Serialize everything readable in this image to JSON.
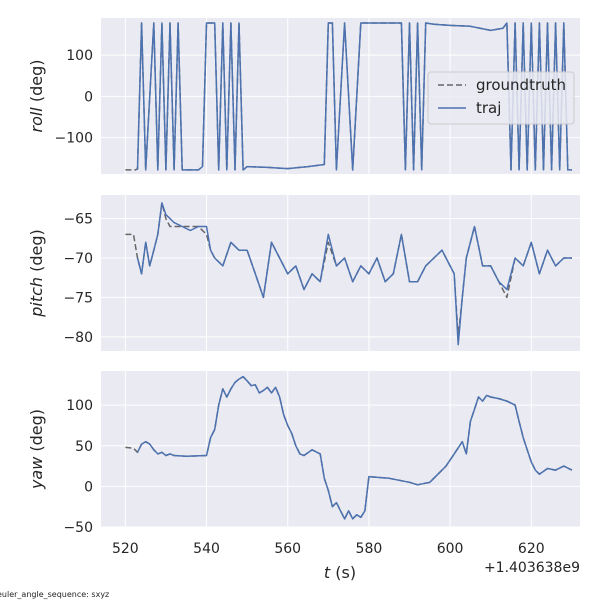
{
  "figure": {
    "x_offset_label": "+1.403638e9",
    "xlabel_var": "t",
    "xlabel_unit": " (s)",
    "footnote": "euler_angle_sequence: sxyz",
    "colors": {
      "background": "#eaeaf2",
      "grid": "#ffffff",
      "groundtruth": "#666666",
      "traj": "#4c72b0",
      "text": "#262626"
    }
  },
  "legend": {
    "items": [
      {
        "label": "groundtruth",
        "style": "dashed"
      },
      {
        "label": "traj",
        "style": "solid"
      }
    ]
  },
  "chart_data": [
    {
      "type": "line",
      "ylabel_var": "roll",
      "ylabel_unit": " (deg)",
      "xlim": [
        514,
        632
      ],
      "ylim": [
        -188,
        190
      ],
      "xticks": [
        520,
        540,
        560,
        580,
        600,
        620
      ],
      "yticks": [
        100,
        0,
        -100
      ],
      "ytick_labels": [
        "100",
        "0",
        "−100"
      ],
      "show_xticklabels": false,
      "series": [
        {
          "name": "groundtruth",
          "style": "dashed",
          "x": [
            520,
            522.5,
            523,
            524,
            525,
            527,
            528,
            529,
            530,
            531,
            532,
            533,
            534,
            535,
            538,
            539,
            540,
            541,
            542,
            543,
            544,
            545,
            546,
            547,
            548,
            549,
            550,
            555,
            560,
            565,
            569,
            570,
            571,
            572,
            574,
            576,
            578,
            580,
            585,
            588,
            589,
            590,
            591,
            592,
            593,
            594,
            596,
            600,
            605,
            610,
            613,
            614,
            615,
            616,
            617,
            618,
            619,
            620,
            621,
            622,
            623,
            624,
            625,
            626,
            627,
            628,
            629,
            630
          ],
          "y": [
            -178,
            -178,
            -175,
            178,
            -178,
            178,
            -178,
            178,
            -178,
            178,
            -178,
            178,
            -178,
            -178,
            -178,
            -170,
            178,
            178,
            178,
            -178,
            178,
            -178,
            178,
            -178,
            178,
            -178,
            -170,
            -172,
            -175,
            -170,
            -165,
            178,
            178,
            -178,
            178,
            -178,
            178,
            178,
            178,
            178,
            -178,
            178,
            -178,
            178,
            -178,
            178,
            175,
            172,
            170,
            160,
            165,
            178,
            -178,
            178,
            -178,
            178,
            -178,
            178,
            -178,
            178,
            -178,
            178,
            -178,
            178,
            -178,
            178,
            -178,
            -178
          ]
        },
        {
          "name": "traj",
          "style": "solid",
          "x": [
            523,
            524,
            525,
            527,
            528,
            529,
            530,
            531,
            532,
            533,
            534,
            535,
            538,
            539,
            540,
            541,
            542,
            543,
            544,
            545,
            546,
            547,
            548,
            549,
            550,
            555,
            560,
            565,
            569,
            570,
            571,
            572,
            574,
            576,
            578,
            580,
            585,
            588,
            589,
            590,
            591,
            592,
            593,
            594,
            596,
            600,
            605,
            610,
            613,
            614,
            615,
            616,
            617,
            618,
            619,
            620,
            621,
            622,
            623,
            624,
            625,
            626,
            627,
            628,
            629,
            630
          ],
          "y": [
            -178,
            178,
            -178,
            178,
            -178,
            178,
            -178,
            178,
            -178,
            178,
            -178,
            -178,
            -178,
            -170,
            178,
            178,
            178,
            -178,
            178,
            -178,
            178,
            -178,
            178,
            -178,
            -170,
            -172,
            -175,
            -170,
            -165,
            178,
            178,
            -178,
            178,
            -178,
            178,
            178,
            178,
            178,
            -178,
            178,
            -178,
            178,
            -178,
            178,
            175,
            172,
            170,
            160,
            165,
            178,
            -178,
            178,
            -178,
            178,
            -178,
            178,
            -178,
            178,
            -178,
            178,
            -178,
            178,
            -178,
            178,
            -178,
            -178
          ]
        }
      ]
    },
    {
      "type": "line",
      "ylabel_var": "pitch",
      "ylabel_unit": " (deg)",
      "xlim": [
        514,
        632
      ],
      "ylim": [
        -81.8,
        -62
      ],
      "xticks": [
        520,
        540,
        560,
        580,
        600,
        620
      ],
      "yticks": [
        -65,
        -70,
        -75,
        -80
      ],
      "ytick_labels": [
        "−65",
        "−70",
        "−75",
        "−80"
      ],
      "show_xticklabels": false,
      "series": [
        {
          "name": "groundtruth",
          "style": "dashed",
          "x": [
            520,
            522,
            523,
            524,
            525,
            526,
            527,
            528,
            529,
            530,
            531,
            532,
            534,
            536,
            538,
            540,
            541,
            542,
            544,
            546,
            548,
            550,
            552,
            554,
            556,
            558,
            560,
            562,
            564,
            566,
            568,
            570,
            572,
            574,
            576,
            578,
            580,
            582,
            584,
            586,
            588,
            590,
            592,
            594,
            596,
            598,
            600,
            601,
            602,
            603,
            604,
            606,
            608,
            610,
            612,
            614,
            616,
            618,
            620,
            622,
            624,
            626,
            628,
            630
          ],
          "y": [
            -67,
            -67,
            -70,
            -72,
            -68,
            -71,
            -69,
            -67,
            -63,
            -65,
            -66,
            -66,
            -66,
            -66,
            -66,
            -67,
            -69,
            -70,
            -71,
            -68,
            -69,
            -69,
            -72,
            -75,
            -68,
            -70,
            -72,
            -71,
            -74,
            -72,
            -73,
            -68,
            -71,
            -70,
            -73,
            -71,
            -72,
            -70,
            -73,
            -72,
            -67,
            -73,
            -73,
            -71,
            -70,
            -69,
            -71,
            -72,
            -80,
            -75,
            -70,
            -66,
            -71,
            -71,
            -73,
            -75,
            -70,
            -71,
            -68,
            -72,
            -69,
            -71,
            -70,
            -70
          ]
        },
        {
          "name": "traj",
          "style": "solid",
          "x": [
            523,
            524,
            525,
            526,
            527,
            528,
            529,
            530,
            531,
            532,
            534,
            536,
            538,
            540,
            541,
            542,
            544,
            546,
            548,
            550,
            552,
            554,
            556,
            558,
            560,
            562,
            564,
            566,
            568,
            570,
            572,
            574,
            576,
            578,
            580,
            582,
            584,
            586,
            588,
            590,
            592,
            594,
            596,
            598,
            600,
            601,
            602,
            603,
            604,
            606,
            608,
            610,
            612,
            614,
            616,
            618,
            620,
            622,
            624,
            626,
            628,
            630
          ],
          "y": [
            -70,
            -72,
            -68,
            -71,
            -69,
            -67,
            -63,
            -64.5,
            -65,
            -65.5,
            -66,
            -66.5,
            -66,
            -66,
            -69,
            -70,
            -71,
            -68,
            -69,
            -69,
            -72,
            -75,
            -68,
            -70,
            -72,
            -71,
            -74,
            -72,
            -73,
            -67,
            -71,
            -70,
            -73,
            -71,
            -72,
            -70,
            -73,
            -72,
            -67,
            -73,
            -73,
            -71,
            -70,
            -69,
            -71,
            -72,
            -81,
            -75,
            -70,
            -66,
            -71,
            -71,
            -73,
            -74,
            -70,
            -71,
            -68,
            -72,
            -69,
            -71,
            -70,
            -70
          ]
        }
      ]
    },
    {
      "type": "line",
      "ylabel_var": "yaw",
      "ylabel_unit": " (deg)",
      "xlim": [
        514,
        632
      ],
      "ylim": [
        -50,
        142
      ],
      "xticks": [
        520,
        540,
        560,
        580,
        600,
        620
      ],
      "xtick_labels": [
        "520",
        "540",
        "560",
        "580",
        "600",
        "620"
      ],
      "yticks": [
        100,
        50,
        0,
        -50
      ],
      "ytick_labels": [
        "100",
        "50",
        "0",
        "−50"
      ],
      "show_xticklabels": true,
      "series": [
        {
          "name": "groundtruth",
          "style": "dashed",
          "x": [
            520,
            522,
            523,
            524,
            525,
            526,
            527,
            528,
            529,
            530,
            531,
            532,
            535,
            540,
            541,
            542,
            543,
            544,
            545,
            546,
            547,
            548,
            549,
            550,
            551,
            552,
            553,
            554,
            555,
            556,
            557,
            558,
            559,
            560,
            561,
            562,
            563,
            564,
            566,
            568,
            569,
            570,
            571,
            572,
            573,
            574,
            575,
            576,
            577,
            578,
            579,
            580,
            585,
            590,
            592,
            595,
            597,
            599,
            601,
            603,
            604,
            605,
            606,
            607,
            608,
            609,
            610,
            612,
            614,
            616,
            617,
            618,
            619,
            620,
            621,
            622,
            624,
            626,
            628,
            630
          ],
          "y": [
            48,
            47,
            42,
            52,
            55,
            52,
            45,
            40,
            42,
            38,
            40,
            38,
            37,
            38,
            60,
            70,
            100,
            120,
            110,
            120,
            128,
            132,
            135,
            130,
            124,
            125,
            115,
            118,
            122,
            115,
            122,
            110,
            88,
            75,
            65,
            50,
            40,
            38,
            45,
            40,
            10,
            -5,
            -25,
            -20,
            -30,
            -40,
            -30,
            -40,
            -35,
            -38,
            -30,
            12,
            10,
            5,
            2,
            5,
            15,
            25,
            40,
            55,
            40,
            80,
            95,
            110,
            105,
            112,
            110,
            108,
            105,
            100,
            80,
            60,
            45,
            30,
            20,
            15,
            22,
            20,
            25,
            20
          ]
        },
        {
          "name": "traj",
          "style": "solid",
          "x": [
            523,
            524,
            525,
            526,
            527,
            528,
            529,
            530,
            531,
            532,
            535,
            540,
            541,
            542,
            543,
            544,
            545,
            546,
            547,
            548,
            549,
            550,
            551,
            552,
            553,
            554,
            555,
            556,
            557,
            558,
            559,
            560,
            561,
            562,
            563,
            564,
            566,
            568,
            569,
            570,
            571,
            572,
            573,
            574,
            575,
            576,
            577,
            578,
            579,
            580,
            585,
            590,
            592,
            595,
            597,
            599,
            601,
            603,
            604,
            605,
            606,
            607,
            608,
            609,
            610,
            612,
            614,
            616,
            617,
            618,
            619,
            620,
            621,
            622,
            624,
            626,
            628,
            630
          ],
          "y": [
            42,
            52,
            55,
            52,
            45,
            40,
            42,
            38,
            40,
            38,
            37,
            38,
            60,
            70,
            100,
            120,
            110,
            120,
            128,
            132,
            135,
            130,
            124,
            125,
            115,
            118,
            122,
            115,
            122,
            110,
            88,
            75,
            65,
            50,
            40,
            38,
            45,
            40,
            10,
            -5,
            -25,
            -20,
            -30,
            -40,
            -30,
            -40,
            -35,
            -38,
            -30,
            12,
            10,
            5,
            2,
            5,
            15,
            25,
            40,
            55,
            40,
            80,
            95,
            110,
            105,
            112,
            110,
            108,
            105,
            100,
            80,
            60,
            45,
            30,
            20,
            15,
            22,
            20,
            25,
            20
          ]
        }
      ]
    }
  ]
}
